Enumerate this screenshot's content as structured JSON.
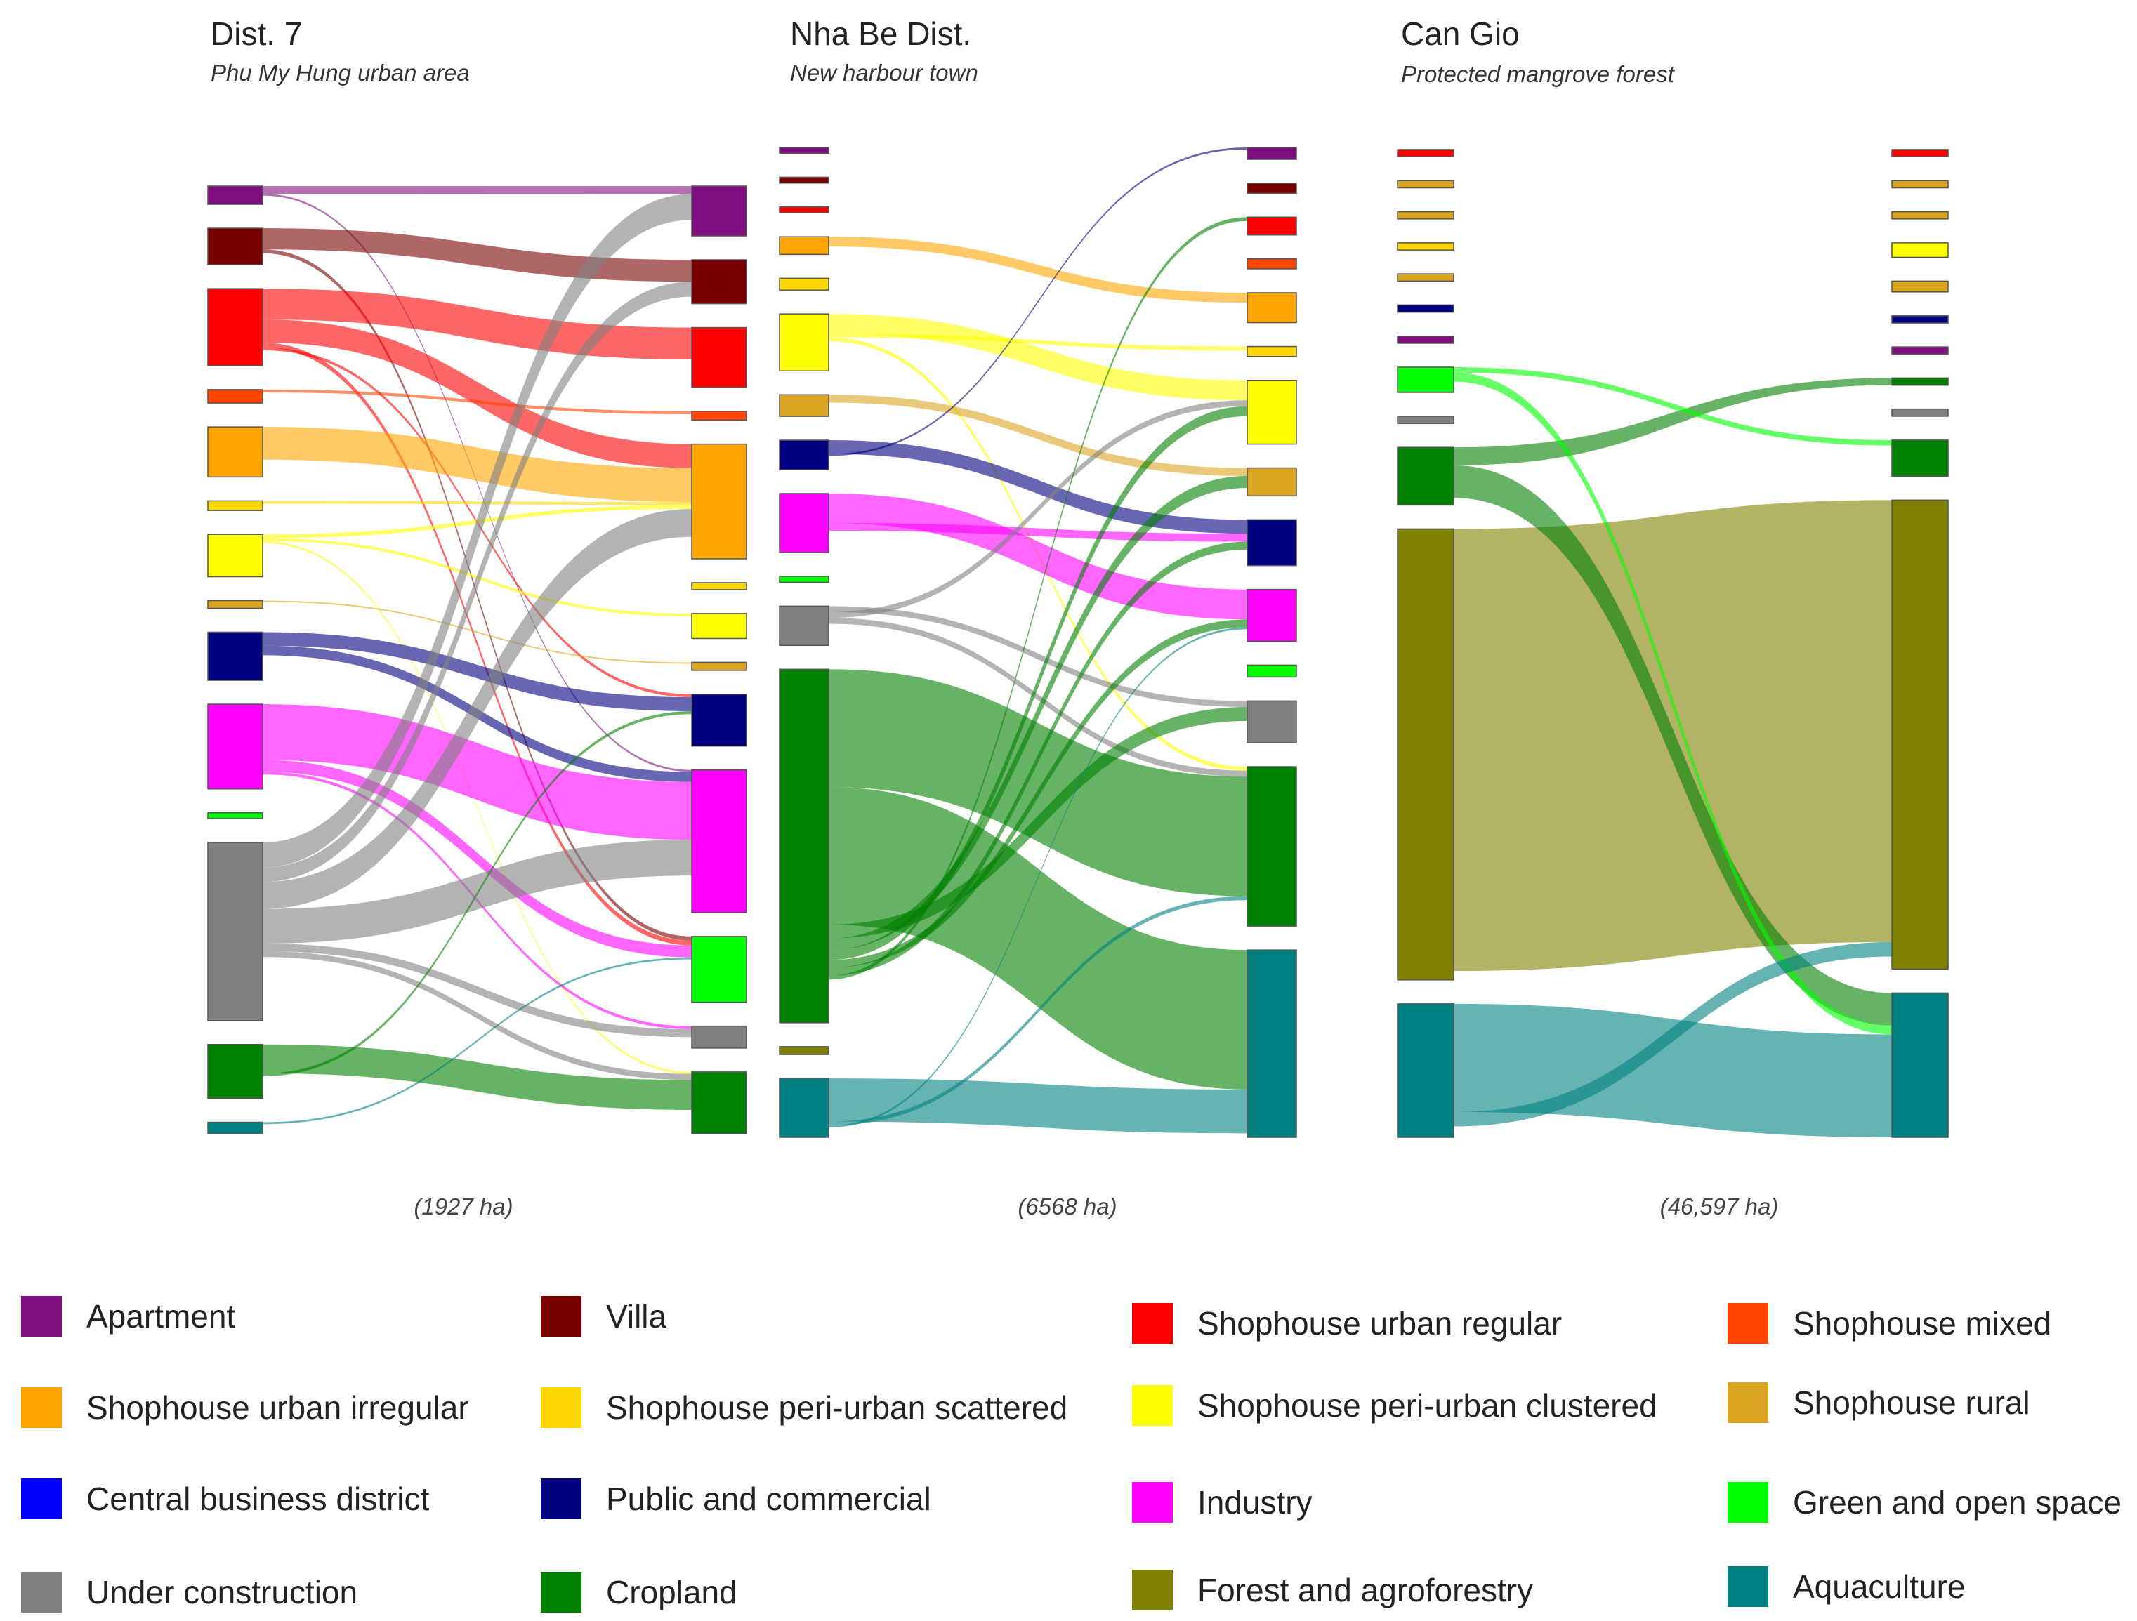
{
  "colors": {
    "apartment": "#7f0f7f",
    "villa": "#7a0000",
    "shophouse_urban_regular": "#ff0000",
    "shophouse_mixed": "#ff4500",
    "shophouse_urban_irregular": "#ffa500",
    "shophouse_periurban_scattered": "#ffd700",
    "shophouse_periurban_clustered": "#ffff00",
    "shophouse_rural": "#daa520",
    "central_business_district": "#0000ff",
    "public_commercial": "#000080",
    "industry": "#ff00ff",
    "green_open_space": "#00ff00",
    "under_construction": "#808080",
    "cropland": "#008000",
    "forest_agroforestry": "#808000",
    "aquaculture": "#008080"
  },
  "legend": [
    {
      "key": "apartment",
      "label": "Apartment"
    },
    {
      "key": "villa",
      "label": "Villa"
    },
    {
      "key": "shophouse_urban_regular",
      "label": "Shophouse urban regular"
    },
    {
      "key": "shophouse_mixed",
      "label": "Shophouse mixed"
    },
    {
      "key": "shophouse_urban_irregular",
      "label": "Shophouse urban irregular"
    },
    {
      "key": "shophouse_periurban_scattered",
      "label": "Shophouse peri-urban scattered"
    },
    {
      "key": "shophouse_periurban_clustered",
      "label": "Shophouse peri-urban clustered"
    },
    {
      "key": "shophouse_rural",
      "label": "Shophouse rural"
    },
    {
      "key": "central_business_district",
      "label": "Central business district"
    },
    {
      "key": "public_commercial",
      "label": "Public and commercial"
    },
    {
      "key": "industry",
      "label": "Industry"
    },
    {
      "key": "green_open_space",
      "label": "Green and open space"
    },
    {
      "key": "under_construction",
      "label": "Under construction"
    },
    {
      "key": "cropland",
      "label": "Cropland"
    },
    {
      "key": "forest_agroforestry",
      "label": "Forest and agroforestry"
    },
    {
      "key": "aquaculture",
      "label": "Aquaculture"
    }
  ],
  "chart_data": [
    {
      "type": "sankey",
      "title": "Dist. 7",
      "subtitle": "Phu My Hung urban area",
      "total_label": "(1927 ha)",
      "left_nodes": [
        {
          "key": "apartment",
          "value": 19
        },
        {
          "key": "villa",
          "value": 38
        },
        {
          "key": "shophouse_urban_regular",
          "value": 80
        },
        {
          "key": "shophouse_mixed",
          "value": 14
        },
        {
          "key": "shophouse_urban_irregular",
          "value": 52
        },
        {
          "key": "shophouse_periurban_scattered",
          "value": 10
        },
        {
          "key": "shophouse_periurban_clustered",
          "value": 44
        },
        {
          "key": "shophouse_rural",
          "value": 8
        },
        {
          "key": "public_commercial",
          "value": 50
        },
        {
          "key": "industry",
          "value": 88
        },
        {
          "key": "green_open_space",
          "value": 6
        },
        {
          "key": "under_construction",
          "value": 185
        },
        {
          "key": "cropland",
          "value": 56
        },
        {
          "key": "aquaculture",
          "value": 12
        }
      ],
      "right_nodes": [
        {
          "key": "apartment",
          "value": 50
        },
        {
          "key": "villa",
          "value": 44
        },
        {
          "key": "shophouse_urban_regular",
          "value": 60
        },
        {
          "key": "shophouse_mixed",
          "value": 9
        },
        {
          "key": "shophouse_urban_irregular",
          "value": 115
        },
        {
          "key": "shophouse_periurban_scattered",
          "value": 7
        },
        {
          "key": "shophouse_periurban_clustered",
          "value": 25
        },
        {
          "key": "shophouse_rural",
          "value": 8
        },
        {
          "key": "public_commercial",
          "value": 52
        },
        {
          "key": "industry",
          "value": 143
        },
        {
          "key": "green_open_space",
          "value": 66
        },
        {
          "key": "under_construction",
          "value": 22
        },
        {
          "key": "cropland",
          "value": 62
        }
      ],
      "flows": [
        {
          "source": "apartment",
          "target": "apartment",
          "value": 8
        },
        {
          "source": "apartment",
          "target": "industry",
          "value": 2
        },
        {
          "source": "villa",
          "target": "villa",
          "value": 22
        },
        {
          "source": "villa",
          "target": "green_open_space",
          "value": 4
        },
        {
          "source": "shophouse_urban_regular",
          "target": "shophouse_urban_regular",
          "value": 32
        },
        {
          "source": "shophouse_urban_regular",
          "target": "shophouse_urban_irregular",
          "value": 24
        },
        {
          "source": "shophouse_urban_regular",
          "target": "green_open_space",
          "value": 5
        },
        {
          "source": "shophouse_urban_regular",
          "target": "public_commercial",
          "value": 3
        },
        {
          "source": "shophouse_mixed",
          "target": "shophouse_mixed",
          "value": 3
        },
        {
          "source": "shophouse_urban_irregular",
          "target": "shophouse_urban_irregular",
          "value": 34
        },
        {
          "source": "shophouse_periurban_scattered",
          "target": "shophouse_urban_irregular",
          "value": 3
        },
        {
          "source": "shophouse_periurban_clustered",
          "target": "shophouse_urban_irregular",
          "value": 4
        },
        {
          "source": "shophouse_periurban_clustered",
          "target": "shophouse_periurban_clustered",
          "value": 3
        },
        {
          "source": "shophouse_periurban_clustered",
          "target": "cropland",
          "value": 2
        },
        {
          "source": "shophouse_rural",
          "target": "shophouse_rural",
          "value": 1
        },
        {
          "source": "public_commercial",
          "target": "public_commercial",
          "value": 14
        },
        {
          "source": "public_commercial",
          "target": "industry",
          "value": 10
        },
        {
          "source": "industry",
          "target": "industry",
          "value": 58
        },
        {
          "source": "industry",
          "target": "green_open_space",
          "value": 12
        },
        {
          "source": "industry",
          "target": "under_construction",
          "value": 3
        },
        {
          "source": "under_construction",
          "target": "apartment",
          "value": 26
        },
        {
          "source": "under_construction",
          "target": "villa",
          "value": 15
        },
        {
          "source": "under_construction",
          "target": "shophouse_urban_irregular",
          "value": 28
        },
        {
          "source": "under_construction",
          "target": "industry",
          "value": 36
        },
        {
          "source": "under_construction",
          "target": "under_construction",
          "value": 8
        },
        {
          "source": "under_construction",
          "target": "cropland",
          "value": 6
        },
        {
          "source": "cropland",
          "target": "cropland",
          "value": 30
        },
        {
          "source": "cropland",
          "target": "public_commercial",
          "value": 3
        },
        {
          "source": "aquaculture",
          "target": "green_open_space",
          "value": 2
        }
      ]
    },
    {
      "type": "sankey",
      "title": "Nha Be Dist.",
      "subtitle": "New harbour town",
      "total_label": "(6568 ha)",
      "left_nodes": [
        {
          "key": "apartment",
          "value": 6
        },
        {
          "key": "villa",
          "value": 6
        },
        {
          "key": "shophouse_urban_regular",
          "value": 6
        },
        {
          "key": "shophouse_urban_irregular",
          "value": 18
        },
        {
          "key": "shophouse_periurban_scattered",
          "value": 12
        },
        {
          "key": "shophouse_periurban_clustered",
          "value": 58
        },
        {
          "key": "shophouse_rural",
          "value": 22
        },
        {
          "key": "public_commercial",
          "value": 30
        },
        {
          "key": "industry",
          "value": 60
        },
        {
          "key": "green_open_space",
          "value": 6
        },
        {
          "key": "under_construction",
          "value": 40
        },
        {
          "key": "cropland",
          "value": 360
        },
        {
          "key": "forest_agroforestry",
          "value": 8
        },
        {
          "key": "aquaculture",
          "value": 60
        }
      ],
      "right_nodes": [
        {
          "key": "apartment",
          "value": 12
        },
        {
          "key": "villa",
          "value": 10
        },
        {
          "key": "shophouse_urban_regular",
          "value": 18
        },
        {
          "key": "shophouse_mixed",
          "value": 10
        },
        {
          "key": "shophouse_urban_irregular",
          "value": 30
        },
        {
          "key": "shophouse_periurban_scattered",
          "value": 10
        },
        {
          "key": "shophouse_periurban_clustered",
          "value": 64
        },
        {
          "key": "shophouse_rural",
          "value": 28
        },
        {
          "key": "public_commercial",
          "value": 46
        },
        {
          "key": "industry",
          "value": 52
        },
        {
          "key": "green_open_space",
          "value": 12
        },
        {
          "key": "under_construction",
          "value": 42
        },
        {
          "key": "cropland",
          "value": 160
        },
        {
          "key": "aquaculture",
          "value": 188
        }
      ],
      "flows": [
        {
          "source": "shophouse_urban_irregular",
          "target": "shophouse_urban_irregular",
          "value": 10
        },
        {
          "source": "shophouse_periurban_clustered",
          "target": "shophouse_periurban_clustered",
          "value": 20
        },
        {
          "source": "shophouse_periurban_clustered",
          "target": "shophouse_periurban_scattered",
          "value": 4
        },
        {
          "source": "shophouse_periurban_clustered",
          "target": "cropland",
          "value": 4
        },
        {
          "source": "shophouse_rural",
          "target": "shophouse_rural",
          "value": 8
        },
        {
          "source": "public_commercial",
          "target": "public_commercial",
          "value": 14
        },
        {
          "source": "public_commercial",
          "target": "apartment",
          "value": 2
        },
        {
          "source": "industry",
          "target": "industry",
          "value": 30
        },
        {
          "source": "industry",
          "target": "public_commercial",
          "value": 8
        },
        {
          "source": "under_construction",
          "target": "under_construction",
          "value": 6
        },
        {
          "source": "under_construction",
          "target": "shophouse_periurban_clustered",
          "value": 6
        },
        {
          "source": "under_construction",
          "target": "cropland",
          "value": 6
        },
        {
          "source": "cropland",
          "target": "cropland",
          "value": 120
        },
        {
          "source": "cropland",
          "target": "aquaculture",
          "value": 140
        },
        {
          "source": "cropland",
          "target": "under_construction",
          "value": 14
        },
        {
          "source": "cropland",
          "target": "shophouse_rural",
          "value": 12
        },
        {
          "source": "cropland",
          "target": "shophouse_periurban_clustered",
          "value": 10
        },
        {
          "source": "cropland",
          "target": "industry",
          "value": 8
        },
        {
          "source": "cropland",
          "target": "public_commercial",
          "value": 8
        },
        {
          "source": "cropland",
          "target": "shophouse_urban_regular",
          "value": 4
        },
        {
          "source": "aquaculture",
          "target": "aquaculture",
          "value": 44
        },
        {
          "source": "aquaculture",
          "target": "cropland",
          "value": 4
        },
        {
          "source": "aquaculture",
          "target": "industry",
          "value": 2
        }
      ]
    },
    {
      "type": "sankey",
      "title": "Can Gio",
      "subtitle": "Protected mangrove forest",
      "total_label": "(46,597 ha)",
      "left_nodes": [
        {
          "key": "shophouse_urban_regular",
          "value": 4
        },
        {
          "key": "shophouse_rural",
          "value": 4
        },
        {
          "key": "shophouse_rural",
          "value": 4
        },
        {
          "key": "shophouse_periurban_scattered",
          "value": 4
        },
        {
          "key": "shophouse_rural",
          "value": 4
        },
        {
          "key": "public_commercial",
          "value": 4
        },
        {
          "key": "apartment",
          "value": 4
        },
        {
          "key": "green_open_space",
          "value": 14
        },
        {
          "key": "under_construction",
          "value": 4
        },
        {
          "key": "cropland",
          "value": 32
        },
        {
          "key": "forest_agroforestry",
          "value": 250
        },
        {
          "key": "aquaculture",
          "value": 74
        }
      ],
      "right_nodes": [
        {
          "key": "shophouse_urban_regular",
          "value": 4
        },
        {
          "key": "shophouse_rural",
          "value": 4
        },
        {
          "key": "shophouse_rural",
          "value": 4
        },
        {
          "key": "shophouse_periurban_clustered",
          "value": 8
        },
        {
          "key": "shophouse_rural",
          "value": 6
        },
        {
          "key": "public_commercial",
          "value": 4
        },
        {
          "key": "apartment",
          "value": 4
        },
        {
          "key": "cropland",
          "value": 4
        },
        {
          "key": "under_construction",
          "value": 4
        },
        {
          "key": "cropland",
          "value": 20
        },
        {
          "key": "forest_agroforestry",
          "value": 260
        },
        {
          "key": "aquaculture",
          "value": 80
        }
      ],
      "flows": [
        {
          "source": "forest_agroforestry",
          "target": "forest_agroforestry",
          "value": 245
        },
        {
          "source": "cropland",
          "target": "cropland",
          "value": 10
        },
        {
          "source": "cropland",
          "target": "aquaculture",
          "value": 18
        },
        {
          "source": "green_open_space",
          "target": "cropland",
          "value": 3
        },
        {
          "source": "green_open_space",
          "target": "aquaculture",
          "value": 5
        },
        {
          "source": "aquaculture",
          "target": "aquaculture",
          "value": 60
        },
        {
          "source": "aquaculture",
          "target": "forest_agroforestry",
          "value": 8
        }
      ]
    }
  ]
}
